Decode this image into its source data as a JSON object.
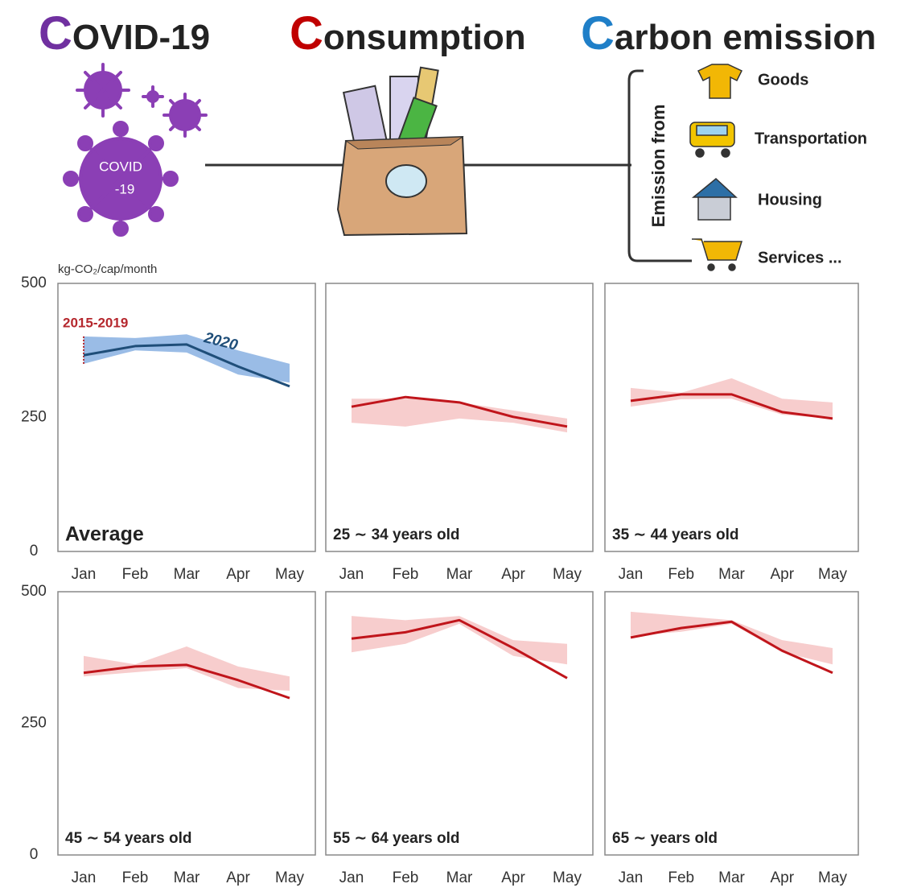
{
  "header": {
    "titles": [
      "COVID-19",
      "Consumption",
      "Carbon emission"
    ],
    "virus_label": [
      "COVID",
      "-19"
    ],
    "emission_heading": "Emission from",
    "emission_sources": [
      "Goods",
      "Transportation",
      "Housing",
      "Services ..."
    ]
  },
  "chart_data": [
    {
      "type": "line",
      "title": "Average",
      "ylabel": "kg-CO₂/cap/month",
      "categories": [
        "Jan",
        "Feb",
        "Mar",
        "Apr",
        "May"
      ],
      "ylim": [
        0,
        500
      ],
      "yticks": [
        0,
        250,
        500
      ],
      "series": [
        {
          "name": "2020",
          "color": "#1f4e79",
          "values": [
            366,
            383,
            386,
            345,
            308
          ]
        }
      ],
      "band": {
        "name": "2015-2019",
        "color": "#6fa0dc",
        "low": [
          350,
          375,
          371,
          330,
          315
        ],
        "high": [
          401,
          398,
          405,
          375,
          350
        ]
      }
    },
    {
      "type": "line",
      "title": "25 ∼ 34 years old",
      "categories": [
        "Jan",
        "Feb",
        "Mar",
        "Apr",
        "May"
      ],
      "ylim": [
        0,
        500
      ],
      "series": [
        {
          "color": "#c0151b",
          "values": [
            270,
            288,
            278,
            251,
            233
          ]
        }
      ],
      "band": {
        "color": "#f4b8b8",
        "low": [
          240,
          233,
          248,
          240,
          222
        ],
        "high": [
          285,
          285,
          278,
          263,
          248
        ]
      }
    },
    {
      "type": "line",
      "title": "35 ∼ 44 years old",
      "categories": [
        "Jan",
        "Feb",
        "Mar",
        "Apr",
        "May"
      ],
      "ylim": [
        0,
        500
      ],
      "series": [
        {
          "color": "#c0151b",
          "values": [
            281,
            293,
            293,
            260,
            248
          ]
        }
      ],
      "band": {
        "color": "#f4b8b8",
        "low": [
          270,
          284,
          285,
          255,
          248
        ],
        "high": [
          305,
          296,
          323,
          285,
          278
        ]
      }
    },
    {
      "type": "line",
      "title": "45 ∼ 54 years old",
      "categories": [
        "Jan",
        "Feb",
        "Mar",
        "Apr",
        "May"
      ],
      "ylim": [
        0,
        500
      ],
      "yticks": [
        0,
        250,
        500
      ],
      "series": [
        {
          "color": "#c0151b",
          "values": [
            346,
            358,
            361,
            332,
            298
          ]
        }
      ],
      "band": {
        "color": "#f4b8b8",
        "low": [
          339,
          347,
          355,
          317,
          312
        ],
        "high": [
          378,
          362,
          396,
          358,
          339
        ]
      }
    },
    {
      "type": "line",
      "title": "55 ∼ 64 years old",
      "categories": [
        "Jan",
        "Feb",
        "Mar",
        "Apr",
        "May"
      ],
      "ylim": [
        0,
        500
      ],
      "series": [
        {
          "color": "#c0151b",
          "values": [
            411,
            423,
            446,
            393,
            336
          ]
        }
      ],
      "band": {
        "color": "#f4b8b8",
        "low": [
          385,
          401,
          439,
          378,
          362
        ],
        "high": [
          454,
          446,
          454,
          408,
          401
        ]
      }
    },
    {
      "type": "line",
      "title": "65 ∼ years old",
      "categories": [
        "Jan",
        "Feb",
        "Mar",
        "Apr",
        "May"
      ],
      "ylim": [
        0,
        500
      ],
      "series": [
        {
          "color": "#c0151b",
          "values": [
            413,
            431,
            443,
            388,
            346
          ]
        }
      ],
      "band": {
        "color": "#f4b8b8",
        "low": [
          416,
          424,
          439,
          385,
          362
        ],
        "high": [
          462,
          454,
          446,
          408,
          393
        ]
      }
    }
  ]
}
